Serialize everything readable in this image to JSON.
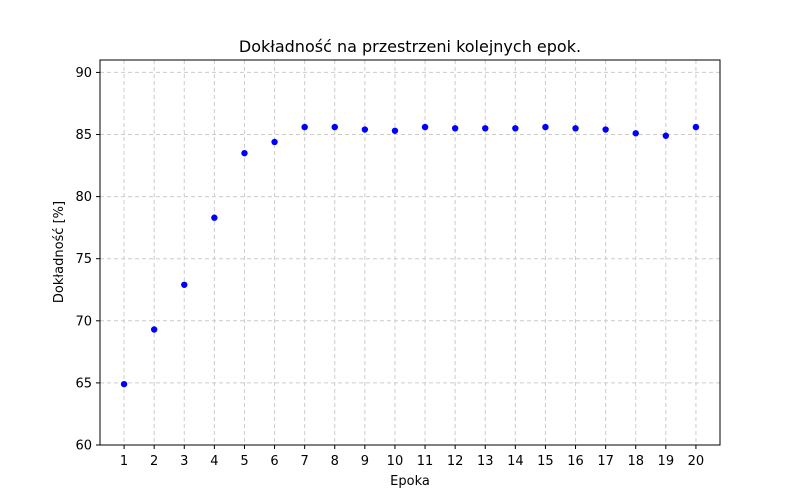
{
  "chart_data": {
    "type": "scatter",
    "title": "Dokładność na przestrzeni kolejnych epok.",
    "xlabel": "Epoka",
    "ylabel": "Dokładność [%]",
    "x": [
      1,
      2,
      3,
      4,
      5,
      6,
      7,
      8,
      9,
      10,
      11,
      12,
      13,
      14,
      15,
      16,
      17,
      18,
      19,
      20
    ],
    "y": [
      64.9,
      69.3,
      72.9,
      78.3,
      83.5,
      84.4,
      85.6,
      85.6,
      85.4,
      85.3,
      85.6,
      85.5,
      85.5,
      85.5,
      85.6,
      85.5,
      85.4,
      85.1,
      84.9,
      85.6
    ],
    "xlim": [
      0.2,
      20.8
    ],
    "ylim": [
      60,
      91
    ],
    "xticks": [
      1,
      2,
      3,
      4,
      5,
      6,
      7,
      8,
      9,
      10,
      11,
      12,
      13,
      14,
      15,
      16,
      17,
      18,
      19,
      20
    ],
    "yticks": [
      60,
      65,
      70,
      75,
      80,
      85,
      90
    ],
    "grid": true,
    "color": "#0000ff"
  }
}
